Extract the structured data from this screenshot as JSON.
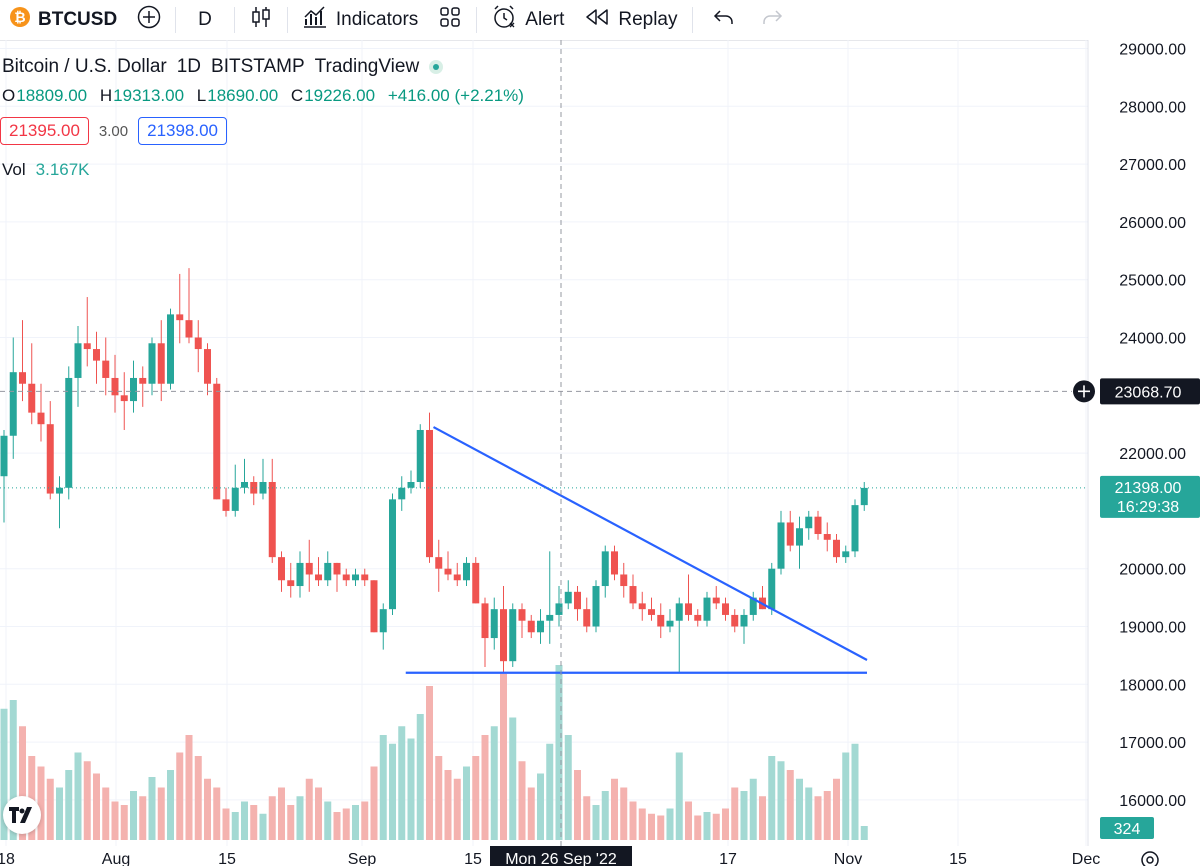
{
  "toolbar": {
    "symbol": "BTCUSD",
    "interval": "D",
    "indicators_label": "Indicators",
    "alert_label": "Alert",
    "replay_label": "Replay"
  },
  "legend": {
    "title": "Bitcoin / U.S. Dollar",
    "interval": "1D",
    "exchange": "BITSTAMP",
    "provider": "TradingView"
  },
  "ohlc": {
    "open_label": "O",
    "open": "18809.00",
    "high_label": "H",
    "high": "19313.00",
    "low_label": "L",
    "low": "18690.00",
    "close_label": "C",
    "close": "19226.00",
    "change": "+416.00 (+2.21%)"
  },
  "quote": {
    "sell": "21395.00",
    "spread": "3.00",
    "buy": "21398.00"
  },
  "volume": {
    "label": "Vol",
    "value": "3.167K"
  },
  "colors": {
    "up": "#26a69a",
    "down": "#ef5350",
    "trendline": "#2962ff",
    "crosshair": "#9598a1"
  },
  "chart_data": {
    "type": "candlestick",
    "symbol": "BTCUSD",
    "ylim": [
      15500,
      29100
    ],
    "y_ticks": [
      "29000.00",
      "28000.00",
      "27000.00",
      "26000.00",
      "25000.00",
      "24000.00",
      "22000.00",
      "20000.00",
      "19000.00",
      "18000.00",
      "17000.00",
      "16000.00"
    ],
    "x_ticks": [
      "18",
      "Aug",
      "15",
      "Sep",
      "15",
      "17",
      "Nov",
      "15",
      "Dec"
    ],
    "crosshair": {
      "price_label": "23068.70",
      "date_label": "Mon 26 Sep '22"
    },
    "last_price": {
      "price": "21398.00",
      "countdown": "16:29:38"
    },
    "volume_label": "324",
    "candles": [
      {
        "o": 21600,
        "h": 22400,
        "l": 20800,
        "c": 22300
      },
      {
        "o": 22300,
        "h": 24000,
        "l": 21900,
        "c": 23400
      },
      {
        "o": 23400,
        "h": 24300,
        "l": 22900,
        "c": 23200
      },
      {
        "o": 23200,
        "h": 23900,
        "l": 22500,
        "c": 22700
      },
      {
        "o": 22700,
        "h": 23200,
        "l": 22200,
        "c": 22500
      },
      {
        "o": 22500,
        "h": 22900,
        "l": 21200,
        "c": 21300
      },
      {
        "o": 21300,
        "h": 21600,
        "l": 20700,
        "c": 21400
      },
      {
        "o": 21400,
        "h": 23500,
        "l": 21200,
        "c": 23300
      },
      {
        "o": 23300,
        "h": 24200,
        "l": 22800,
        "c": 23900
      },
      {
        "o": 23900,
        "h": 24700,
        "l": 23500,
        "c": 23800
      },
      {
        "o": 23800,
        "h": 24100,
        "l": 23200,
        "c": 23600
      },
      {
        "o": 23600,
        "h": 24000,
        "l": 23000,
        "c": 23300
      },
      {
        "o": 23300,
        "h": 23700,
        "l": 22700,
        "c": 23000
      },
      {
        "o": 23000,
        "h": 23400,
        "l": 22400,
        "c": 22900
      },
      {
        "o": 22900,
        "h": 23600,
        "l": 22700,
        "c": 23300
      },
      {
        "o": 23300,
        "h": 23500,
        "l": 22800,
        "c": 23200
      },
      {
        "o": 23200,
        "h": 24000,
        "l": 23000,
        "c": 23900
      },
      {
        "o": 23900,
        "h": 24300,
        "l": 22900,
        "c": 23200
      },
      {
        "o": 23200,
        "h": 24500,
        "l": 23100,
        "c": 24400
      },
      {
        "o": 24400,
        "h": 25100,
        "l": 23900,
        "c": 24300
      },
      {
        "o": 24300,
        "h": 25200,
        "l": 23900,
        "c": 24000
      },
      {
        "o": 24000,
        "h": 24300,
        "l": 23400,
        "c": 23800
      },
      {
        "o": 23800,
        "h": 23900,
        "l": 23000,
        "c": 23200
      },
      {
        "o": 23200,
        "h": 23300,
        "l": 21200,
        "c": 21200
      },
      {
        "o": 21200,
        "h": 21400,
        "l": 20900,
        "c": 21000
      },
      {
        "o": 21000,
        "h": 21800,
        "l": 20900,
        "c": 21400
      },
      {
        "o": 21400,
        "h": 21900,
        "l": 21300,
        "c": 21500
      },
      {
        "o": 21500,
        "h": 21600,
        "l": 21100,
        "c": 21300
      },
      {
        "o": 21300,
        "h": 21900,
        "l": 21200,
        "c": 21500
      },
      {
        "o": 21500,
        "h": 21900,
        "l": 20100,
        "c": 20200
      },
      {
        "o": 20200,
        "h": 20300,
        "l": 19600,
        "c": 19800
      },
      {
        "o": 19800,
        "h": 20100,
        "l": 19500,
        "c": 19700
      },
      {
        "o": 19700,
        "h": 20300,
        "l": 19500,
        "c": 20100
      },
      {
        "o": 20100,
        "h": 20500,
        "l": 19600,
        "c": 19900
      },
      {
        "o": 19900,
        "h": 20200,
        "l": 19700,
        "c": 19800
      },
      {
        "o": 19800,
        "h": 20300,
        "l": 19700,
        "c": 20100
      },
      {
        "o": 20100,
        "h": 20100,
        "l": 19600,
        "c": 19900
      },
      {
        "o": 19900,
        "h": 20000,
        "l": 19700,
        "c": 19800
      },
      {
        "o": 19800,
        "h": 20000,
        "l": 19700,
        "c": 19900
      },
      {
        "o": 19900,
        "h": 20000,
        "l": 19700,
        "c": 19800
      },
      {
        "o": 19800,
        "h": 19800,
        "l": 18900,
        "c": 18900
      },
      {
        "o": 18900,
        "h": 19400,
        "l": 18600,
        "c": 19300
      },
      {
        "o": 19300,
        "h": 21300,
        "l": 19200,
        "c": 21200
      },
      {
        "o": 21200,
        "h": 21600,
        "l": 21000,
        "c": 21400
      },
      {
        "o": 21400,
        "h": 21700,
        "l": 21300,
        "c": 21500
      },
      {
        "o": 21500,
        "h": 22500,
        "l": 21400,
        "c": 22400
      },
      {
        "o": 22400,
        "h": 22700,
        "l": 20100,
        "c": 20200
      },
      {
        "o": 20200,
        "h": 20500,
        "l": 19600,
        "c": 20000
      },
      {
        "o": 20000,
        "h": 20300,
        "l": 19800,
        "c": 19900
      },
      {
        "o": 19900,
        "h": 20100,
        "l": 19700,
        "c": 19800
      },
      {
        "o": 19800,
        "h": 20200,
        "l": 19700,
        "c": 20100
      },
      {
        "o": 20100,
        "h": 20200,
        "l": 19400,
        "c": 19400
      },
      {
        "o": 19400,
        "h": 19500,
        "l": 18300,
        "c": 18800
      },
      {
        "o": 18800,
        "h": 19500,
        "l": 18600,
        "c": 19300
      },
      {
        "o": 19300,
        "h": 19700,
        "l": 18200,
        "c": 18400
      },
      {
        "o": 18400,
        "h": 19400,
        "l": 18300,
        "c": 19300
      },
      {
        "o": 19300,
        "h": 19400,
        "l": 18800,
        "c": 19100
      },
      {
        "o": 19100,
        "h": 19200,
        "l": 18800,
        "c": 18900
      },
      {
        "o": 18900,
        "h": 19300,
        "l": 18700,
        "c": 19100
      },
      {
        "o": 19100,
        "h": 20300,
        "l": 18700,
        "c": 19200
      },
      {
        "o": 19200,
        "h": 19700,
        "l": 19000,
        "c": 19400
      },
      {
        "o": 19400,
        "h": 19800,
        "l": 19300,
        "c": 19600
      },
      {
        "o": 19600,
        "h": 19700,
        "l": 19100,
        "c": 19300
      },
      {
        "o": 19300,
        "h": 19500,
        "l": 18900,
        "c": 19000
      },
      {
        "o": 19000,
        "h": 19800,
        "l": 18900,
        "c": 19700
      },
      {
        "o": 19700,
        "h": 20400,
        "l": 19500,
        "c": 20300
      },
      {
        "o": 20300,
        "h": 20400,
        "l": 19800,
        "c": 19900
      },
      {
        "o": 19900,
        "h": 20100,
        "l": 19500,
        "c": 19700
      },
      {
        "o": 19700,
        "h": 19900,
        "l": 19300,
        "c": 19400
      },
      {
        "o": 19400,
        "h": 19600,
        "l": 19100,
        "c": 19300
      },
      {
        "o": 19300,
        "h": 19500,
        "l": 19100,
        "c": 19200
      },
      {
        "o": 19200,
        "h": 19400,
        "l": 18800,
        "c": 19000
      },
      {
        "o": 19000,
        "h": 19300,
        "l": 18900,
        "c": 19100
      },
      {
        "o": 19100,
        "h": 19500,
        "l": 18200,
        "c": 19400
      },
      {
        "o": 19400,
        "h": 19900,
        "l": 19100,
        "c": 19200
      },
      {
        "o": 19200,
        "h": 19300,
        "l": 19000,
        "c": 19100
      },
      {
        "o": 19100,
        "h": 19600,
        "l": 19000,
        "c": 19500
      },
      {
        "o": 19500,
        "h": 19700,
        "l": 19300,
        "c": 19400
      },
      {
        "o": 19400,
        "h": 19500,
        "l": 19100,
        "c": 19200
      },
      {
        "o": 19200,
        "h": 19300,
        "l": 18900,
        "c": 19000
      },
      {
        "o": 19000,
        "h": 19300,
        "l": 18700,
        "c": 19200
      },
      {
        "o": 19200,
        "h": 19600,
        "l": 19100,
        "c": 19500
      },
      {
        "o": 19500,
        "h": 19700,
        "l": 19300,
        "c": 19300
      },
      {
        "o": 19300,
        "h": 20100,
        "l": 19200,
        "c": 20000
      },
      {
        "o": 20000,
        "h": 21000,
        "l": 19900,
        "c": 20800
      },
      {
        "o": 20800,
        "h": 21000,
        "l": 20300,
        "c": 20400
      },
      {
        "o": 20400,
        "h": 20900,
        "l": 20000,
        "c": 20700
      },
      {
        "o": 20700,
        "h": 21000,
        "l": 20500,
        "c": 20900
      },
      {
        "o": 20900,
        "h": 21000,
        "l": 20500,
        "c": 20600
      },
      {
        "o": 20600,
        "h": 20800,
        "l": 20300,
        "c": 20500
      },
      {
        "o": 20500,
        "h": 20600,
        "l": 20100,
        "c": 20200
      },
      {
        "o": 20200,
        "h": 20400,
        "l": 20100,
        "c": 20300
      },
      {
        "o": 20300,
        "h": 21200,
        "l": 20200,
        "c": 21100
      },
      {
        "o": 21100,
        "h": 21500,
        "l": 21000,
        "c": 21398
      }
    ],
    "volume_heights": [
      0.75,
      0.8,
      0.65,
      0.48,
      0.42,
      0.35,
      0.3,
      0.4,
      0.5,
      0.45,
      0.38,
      0.3,
      0.22,
      0.2,
      0.28,
      0.25,
      0.36,
      0.3,
      0.4,
      0.5,
      0.6,
      0.48,
      0.35,
      0.3,
      0.18,
      0.16,
      0.22,
      0.2,
      0.15,
      0.25,
      0.3,
      0.2,
      0.25,
      0.35,
      0.3,
      0.22,
      0.16,
      0.18,
      0.2,
      0.22,
      0.42,
      0.6,
      0.55,
      0.65,
      0.58,
      0.72,
      0.88,
      0.48,
      0.4,
      0.35,
      0.42,
      0.48,
      0.6,
      0.65,
      0.95,
      0.7,
      0.45,
      0.3,
      0.38,
      0.55,
      1.0,
      0.6,
      0.4,
      0.25,
      0.2,
      0.28,
      0.35,
      0.3,
      0.22,
      0.18,
      0.15,
      0.14,
      0.18,
      0.5,
      0.22,
      0.14,
      0.16,
      0.15,
      0.18,
      0.3,
      0.28,
      0.35,
      0.25,
      0.48,
      0.45,
      0.4,
      0.35,
      0.3,
      0.25,
      0.28,
      0.35,
      0.5,
      0.55,
      0.08
    ],
    "trendlines": [
      {
        "name": "descending",
        "p1": {
          "i": 46,
          "price": 22450
        },
        "p2": {
          "i": 92,
          "price": 18420
        }
      },
      {
        "name": "support",
        "p1": {
          "i": 43,
          "price": 18200
        },
        "p2": {
          "i": 92,
          "price": 18200
        }
      }
    ]
  }
}
